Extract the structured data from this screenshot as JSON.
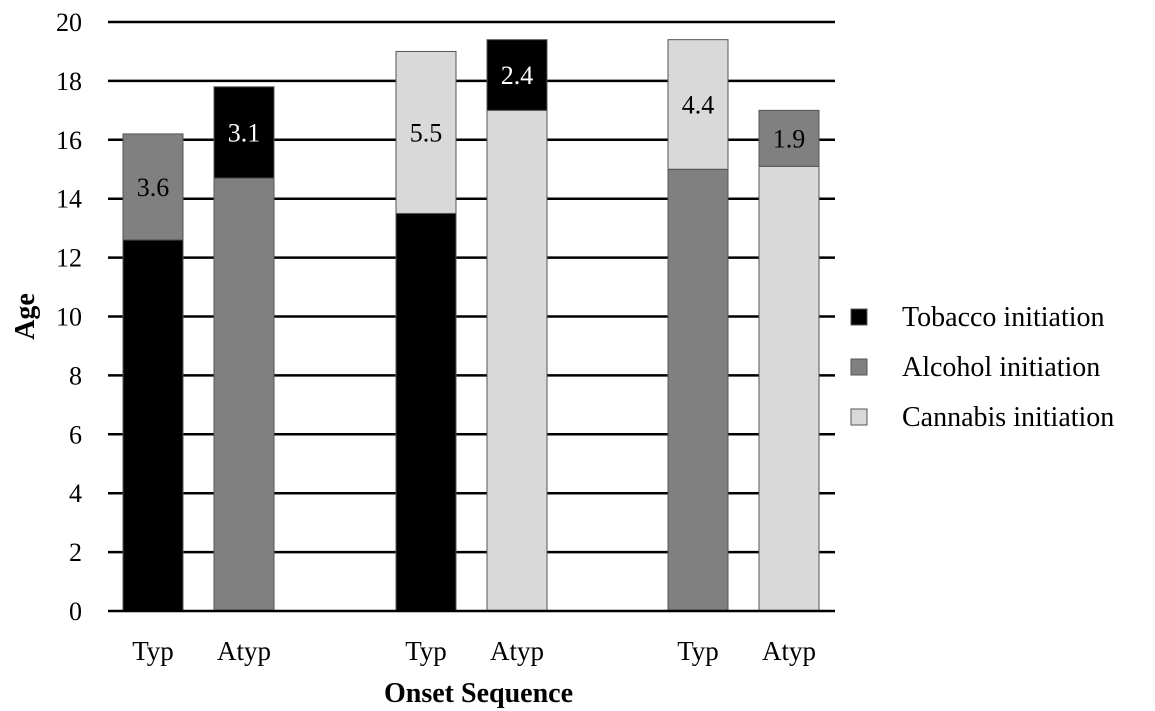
{
  "chart_data": {
    "type": "bar",
    "stacked": true,
    "xlabel": "Onset Sequence",
    "ylabel": "Age",
    "ylim": [
      0,
      20
    ],
    "yticks": [
      0,
      2,
      4,
      6,
      8,
      10,
      12,
      14,
      16,
      18,
      20
    ],
    "grid": true,
    "legend_position": "right",
    "categories": [
      "Typ",
      "Atyp",
      "Typ",
      "Atyp",
      "Typ",
      "Atyp"
    ],
    "series_colors": {
      "tobacco": "#000000",
      "alcohol": "#808080",
      "cannabis": "#d9d9d9"
    },
    "legend": [
      {
        "key": "tobacco",
        "label": "Tobacco initiation"
      },
      {
        "key": "alcohol",
        "label": "Alcohol initiation"
      },
      {
        "key": "cannabis",
        "label": "Cannabis initiation"
      }
    ],
    "bars": [
      {
        "label": "Typ",
        "segments": [
          {
            "series": "tobacco",
            "value": 12.6
          },
          {
            "series": "alcohol",
            "value": 3.6,
            "label": "3.6"
          }
        ]
      },
      {
        "label": "Atyp",
        "segments": [
          {
            "series": "alcohol",
            "value": 14.7
          },
          {
            "series": "tobacco",
            "value": 3.1,
            "label": "3.1"
          }
        ]
      },
      {
        "label": "Typ",
        "segments": [
          {
            "series": "tobacco",
            "value": 13.5
          },
          {
            "series": "cannabis",
            "value": 5.5,
            "label": "5.5"
          }
        ]
      },
      {
        "label": "Atyp",
        "segments": [
          {
            "series": "cannabis",
            "value": 17.0
          },
          {
            "series": "tobacco",
            "value": 2.4,
            "label": "2.4"
          }
        ]
      },
      {
        "label": "Typ",
        "segments": [
          {
            "series": "alcohol",
            "value": 15.0
          },
          {
            "series": "cannabis",
            "value": 4.4,
            "label": "4.4"
          }
        ]
      },
      {
        "label": "Atyp",
        "segments": [
          {
            "series": "cannabis",
            "value": 15.1
          },
          {
            "series": "alcohol",
            "value": 1.9,
            "label": "1.9"
          }
        ]
      }
    ]
  }
}
